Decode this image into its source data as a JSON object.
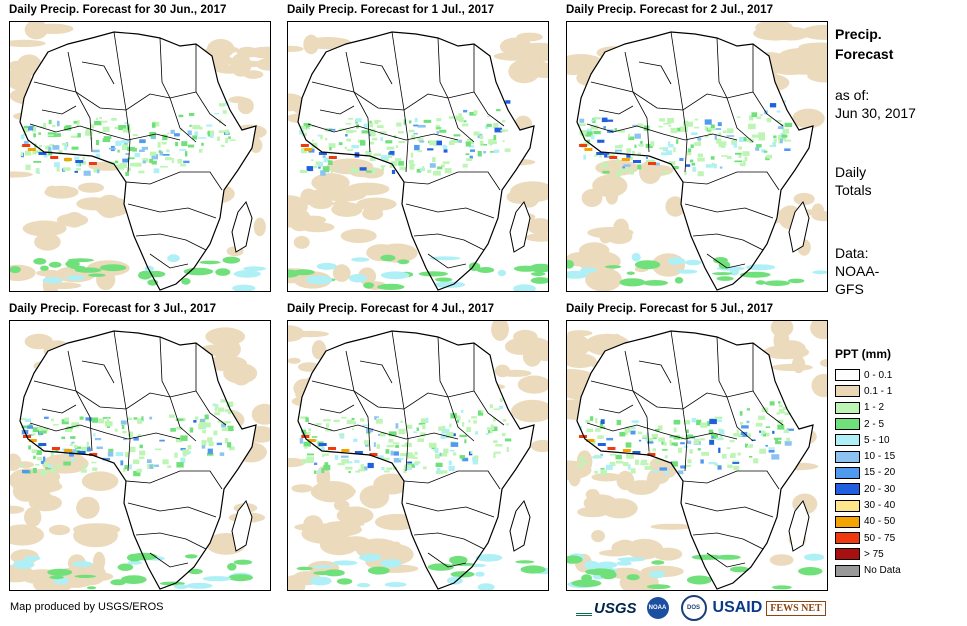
{
  "panels": [
    {
      "title": "Daily Precip. Forecast for 30 Jun., 2017"
    },
    {
      "title": "Daily Precip. Forecast for 1 Jul., 2017"
    },
    {
      "title": "Daily Precip. Forecast for 2 Jul., 2017"
    },
    {
      "title": "Daily Precip. Forecast for 3 Jul., 2017"
    },
    {
      "title": "Daily Precip. Forecast for 4 Jul., 2017"
    },
    {
      "title": "Daily Precip. Forecast for 5 Jul., 2017"
    }
  ],
  "sidebar": {
    "title_line1": "Precip.",
    "title_line2": "Forecast",
    "asof_label": "as of:",
    "asof_date": "Jun 30, 2017",
    "totals_line1": "Daily",
    "totals_line2": "Totals",
    "data_label": "Data:",
    "data_line1": "NOAA-",
    "data_line2": "GFS"
  },
  "legend": {
    "title": "PPT (mm)",
    "items": [
      {
        "label": "0 - 0.1",
        "color": "#ffffff"
      },
      {
        "label": "0.1 - 1",
        "color": "#ead7b5"
      },
      {
        "label": "1 - 2",
        "color": "#bdf5b5"
      },
      {
        "label": "2 - 5",
        "color": "#6fe07a"
      },
      {
        "label": "5 - 10",
        "color": "#aef0f5"
      },
      {
        "label": "10 - 15",
        "color": "#8cc3f0"
      },
      {
        "label": "15 - 20",
        "color": "#4f99ef"
      },
      {
        "label": "20 - 30",
        "color": "#1f5fe0"
      },
      {
        "label": "30 - 40",
        "color": "#fde78a"
      },
      {
        "label": "40 - 50",
        "color": "#f5a300"
      },
      {
        "label": "50 - 75",
        "color": "#ef3a10"
      },
      {
        "label": "> 75",
        "color": "#a81010"
      },
      {
        "label": "No Data",
        "color": "#999999"
      }
    ]
  },
  "footer": {
    "credit": "Map produced by USGS/EROS",
    "logos": {
      "usgs": "USGS",
      "noaa": "NOAA",
      "dos": "DOS",
      "usaid": "USAID",
      "fews": "FEWS NET"
    }
  }
}
